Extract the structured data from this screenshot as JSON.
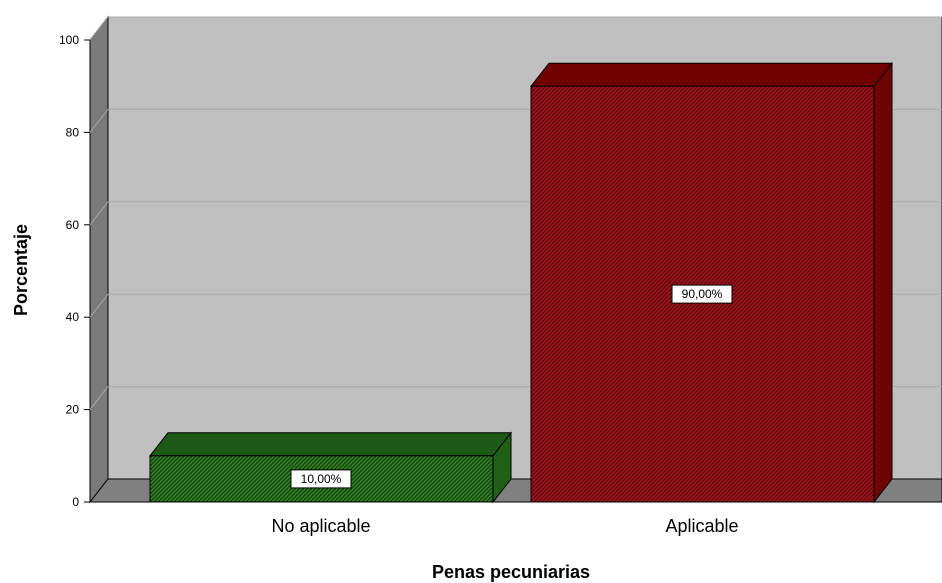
{
  "chart_data": {
    "type": "bar",
    "categories": [
      "No aplicable",
      "Aplicable"
    ],
    "values": [
      10,
      90
    ],
    "data_labels": [
      "10,00%",
      "90,00%"
    ],
    "xlabel": "Penas pecuniarias",
    "ylabel": "Porcentaje",
    "ylim": [
      0,
      100
    ],
    "yticks": [
      0,
      20,
      40,
      60,
      80,
      100
    ],
    "grid": true,
    "style": "3d",
    "bar_colors": [
      "#2f7d22",
      "#a4121a"
    ],
    "bar_top_colors": [
      "#1d5a17",
      "#6e0000"
    ],
    "bar_side_colors": [
      "#1f6016",
      "#6f0404"
    ],
    "background_color": "#c0c0c0"
  }
}
